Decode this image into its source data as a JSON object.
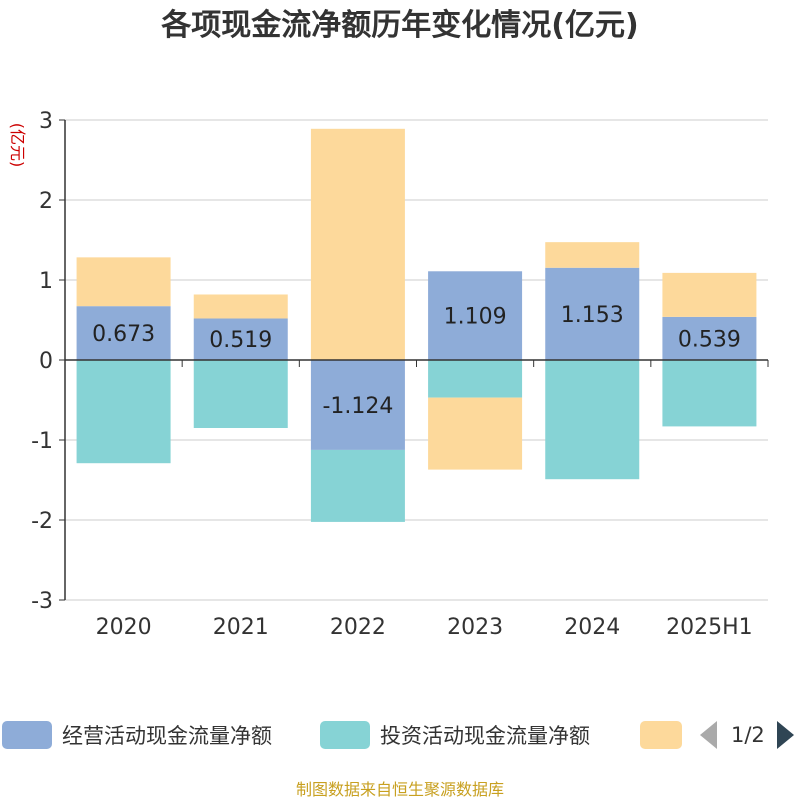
{
  "title": "各项现金流净额历年变化情况(亿元)",
  "source": "制图数据来自恒生聚源数据库",
  "pager": "1/2",
  "colors": {
    "operating": "#8eacd8",
    "investing": "#86d3d5",
    "financing": "#fdd99b",
    "axis": "#333333",
    "grid": "#cccccc",
    "ylabel": "#cc0000"
  },
  "chart_data": {
    "type": "bar",
    "stacked": true,
    "categories": [
      "2020",
      "2021",
      "2022",
      "2023",
      "2024",
      "2025H1"
    ],
    "ylabel": "(亿元)",
    "ylim": [
      -3,
      3
    ],
    "yticks": [
      3,
      2,
      1,
      0,
      -1,
      -2,
      -3
    ],
    "grid": true,
    "legend_position": "bottom",
    "series": [
      {
        "name": "经营活动现金流量净额",
        "values": [
          0.673,
          0.519,
          -1.124,
          1.109,
          1.153,
          0.539
        ],
        "labels": [
          "0.673",
          "0.519",
          "-1.124",
          "1.109",
          "1.153",
          "0.539"
        ]
      },
      {
        "name": "投资活动现金流量净额",
        "values": [
          -1.29,
          -0.85,
          -0.9,
          -0.47,
          -1.49,
          -0.83
        ]
      },
      {
        "name": "",
        "values": [
          0.61,
          0.3,
          2.89,
          -0.9,
          0.32,
          0.55
        ]
      }
    ]
  }
}
